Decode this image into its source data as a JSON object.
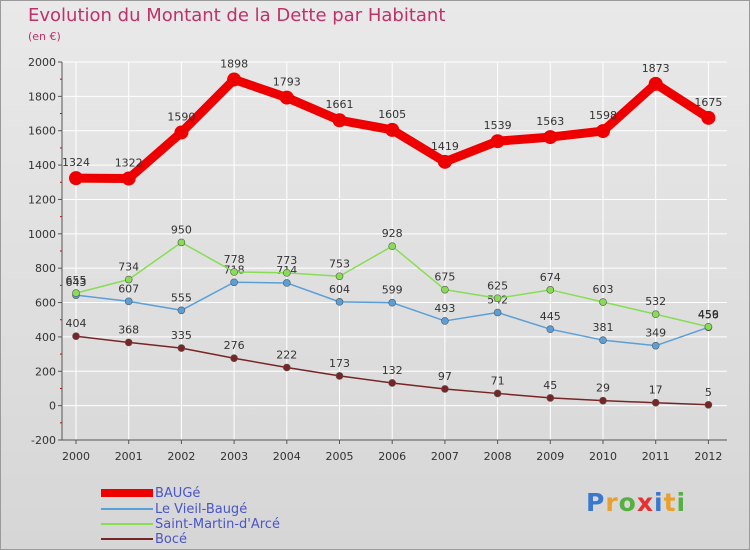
{
  "chart_data": {
    "type": "line",
    "title": "Evolution du Montant de la Dette par Habitant",
    "subtitle": "(en €)",
    "x": [
      "2000",
      "2001",
      "2002",
      "2003",
      "2004",
      "2005",
      "2006",
      "2007",
      "2008",
      "2009",
      "2010",
      "2011",
      "2012"
    ],
    "ylim": [
      -200,
      2000
    ],
    "yticks": [
      -200,
      0,
      200,
      400,
      600,
      800,
      1000,
      1200,
      1400,
      1600,
      1800,
      2000
    ],
    "grid": true,
    "legend_position": "bottom-left",
    "series": [
      {
        "name": "BAUGé",
        "color": "#ee0000",
        "values": [
          1324,
          1322,
          1590,
          1898,
          1793,
          1661,
          1605,
          1419,
          1539,
          1563,
          1598,
          1873,
          1675
        ]
      },
      {
        "name": "Le Vieil-Baugé",
        "color": "#5a9fd8",
        "values": [
          643,
          607,
          555,
          718,
          714,
          604,
          599,
          493,
          542,
          445,
          381,
          349,
          456
        ]
      },
      {
        "name": "Saint-Martin-d'Arcé",
        "color": "#88dd55",
        "values": [
          655,
          734,
          950,
          778,
          773,
          753,
          928,
          675,
          625,
          674,
          603,
          532,
          459
        ]
      },
      {
        "name": "Bocé",
        "color": "#7a2525",
        "values": [
          404,
          368,
          335,
          276,
          222,
          173,
          132,
          97,
          71,
          45,
          29,
          17,
          5
        ]
      }
    ]
  },
  "logo": {
    "letters": [
      "P",
      "r",
      "o",
      "x",
      "i",
      "t",
      "i"
    ],
    "colors": [
      "#3a78d0",
      "#e8a030",
      "#55b040",
      "#e83030",
      "#3a78d0",
      "#e8a030",
      "#55b040"
    ]
  }
}
